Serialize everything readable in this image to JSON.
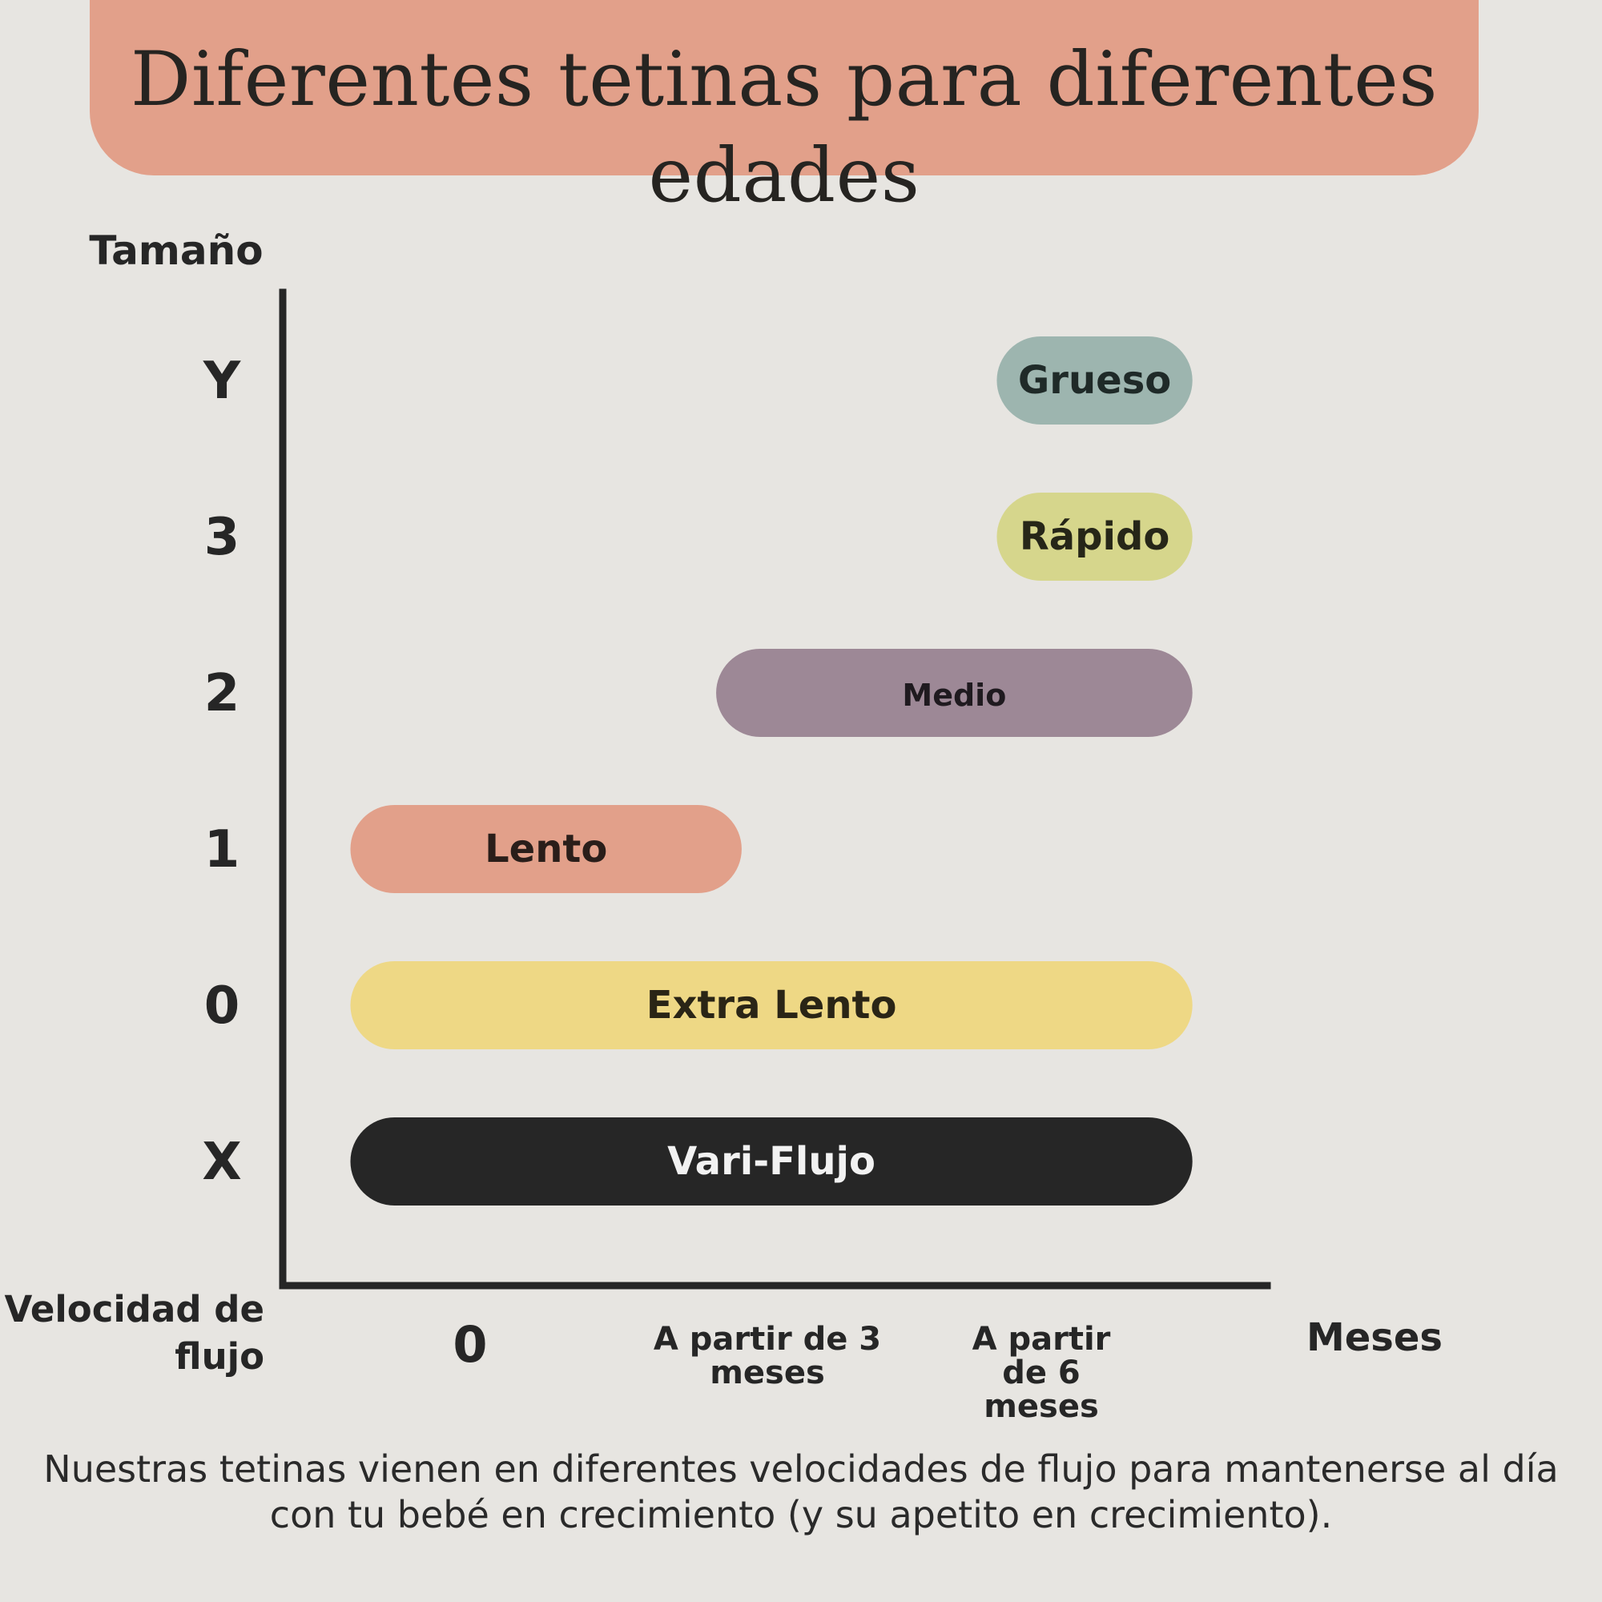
{
  "title": "Diferentes tetinas para diferentes edades",
  "footnote": "Nuestras tetinas vienen en diferentes velocidades de flujo para mantenerse al día con tu bebé en crecimiento (y su apetito en crecimiento).",
  "chart_data": {
    "type": "bar",
    "orientation": "horizontal-range",
    "ylabel": "Tamaño",
    "xlabel_left": "Velocidad de flujo",
    "xlabel_right": "Meses",
    "y_categories": [
      "X",
      "0",
      "1",
      "2",
      "3",
      "Y"
    ],
    "x_ticks": [
      {
        "value": 0,
        "label": "0"
      },
      {
        "value": 3,
        "label": "A partir de 3 meses"
      },
      {
        "value": 6,
        "label": "A partir de 6 meses"
      }
    ],
    "xlim": [
      -2,
      9
    ],
    "bars": [
      {
        "size": "Y",
        "label": "Grueso",
        "start": 6,
        "end": 8.3,
        "color": "#9db5af",
        "text_color": "#1f2a28"
      },
      {
        "size": "3",
        "label": "Rápido",
        "start": 6,
        "end": 8.3,
        "color": "#d6d68c",
        "text_color": "#262618"
      },
      {
        "size": "2",
        "label": "Medio",
        "start": 2.7,
        "end": 8.3,
        "color": "#9d8896",
        "text_color": "#1f1a1f"
      },
      {
        "size": "1",
        "label": "Lento",
        "start": -1.6,
        "end": 3,
        "color": "#e2a08a",
        "text_color": "#2a1e1a"
      },
      {
        "size": "0",
        "label": "Extra Lento",
        "start": -1.6,
        "end": 8.3,
        "color": "#eed885",
        "text_color": "#2a2516"
      },
      {
        "size": "X",
        "label": "Vari-Flujo",
        "start": -1.6,
        "end": 8.3,
        "color": "#262626",
        "text_color": "#f2f2f2"
      }
    ]
  }
}
